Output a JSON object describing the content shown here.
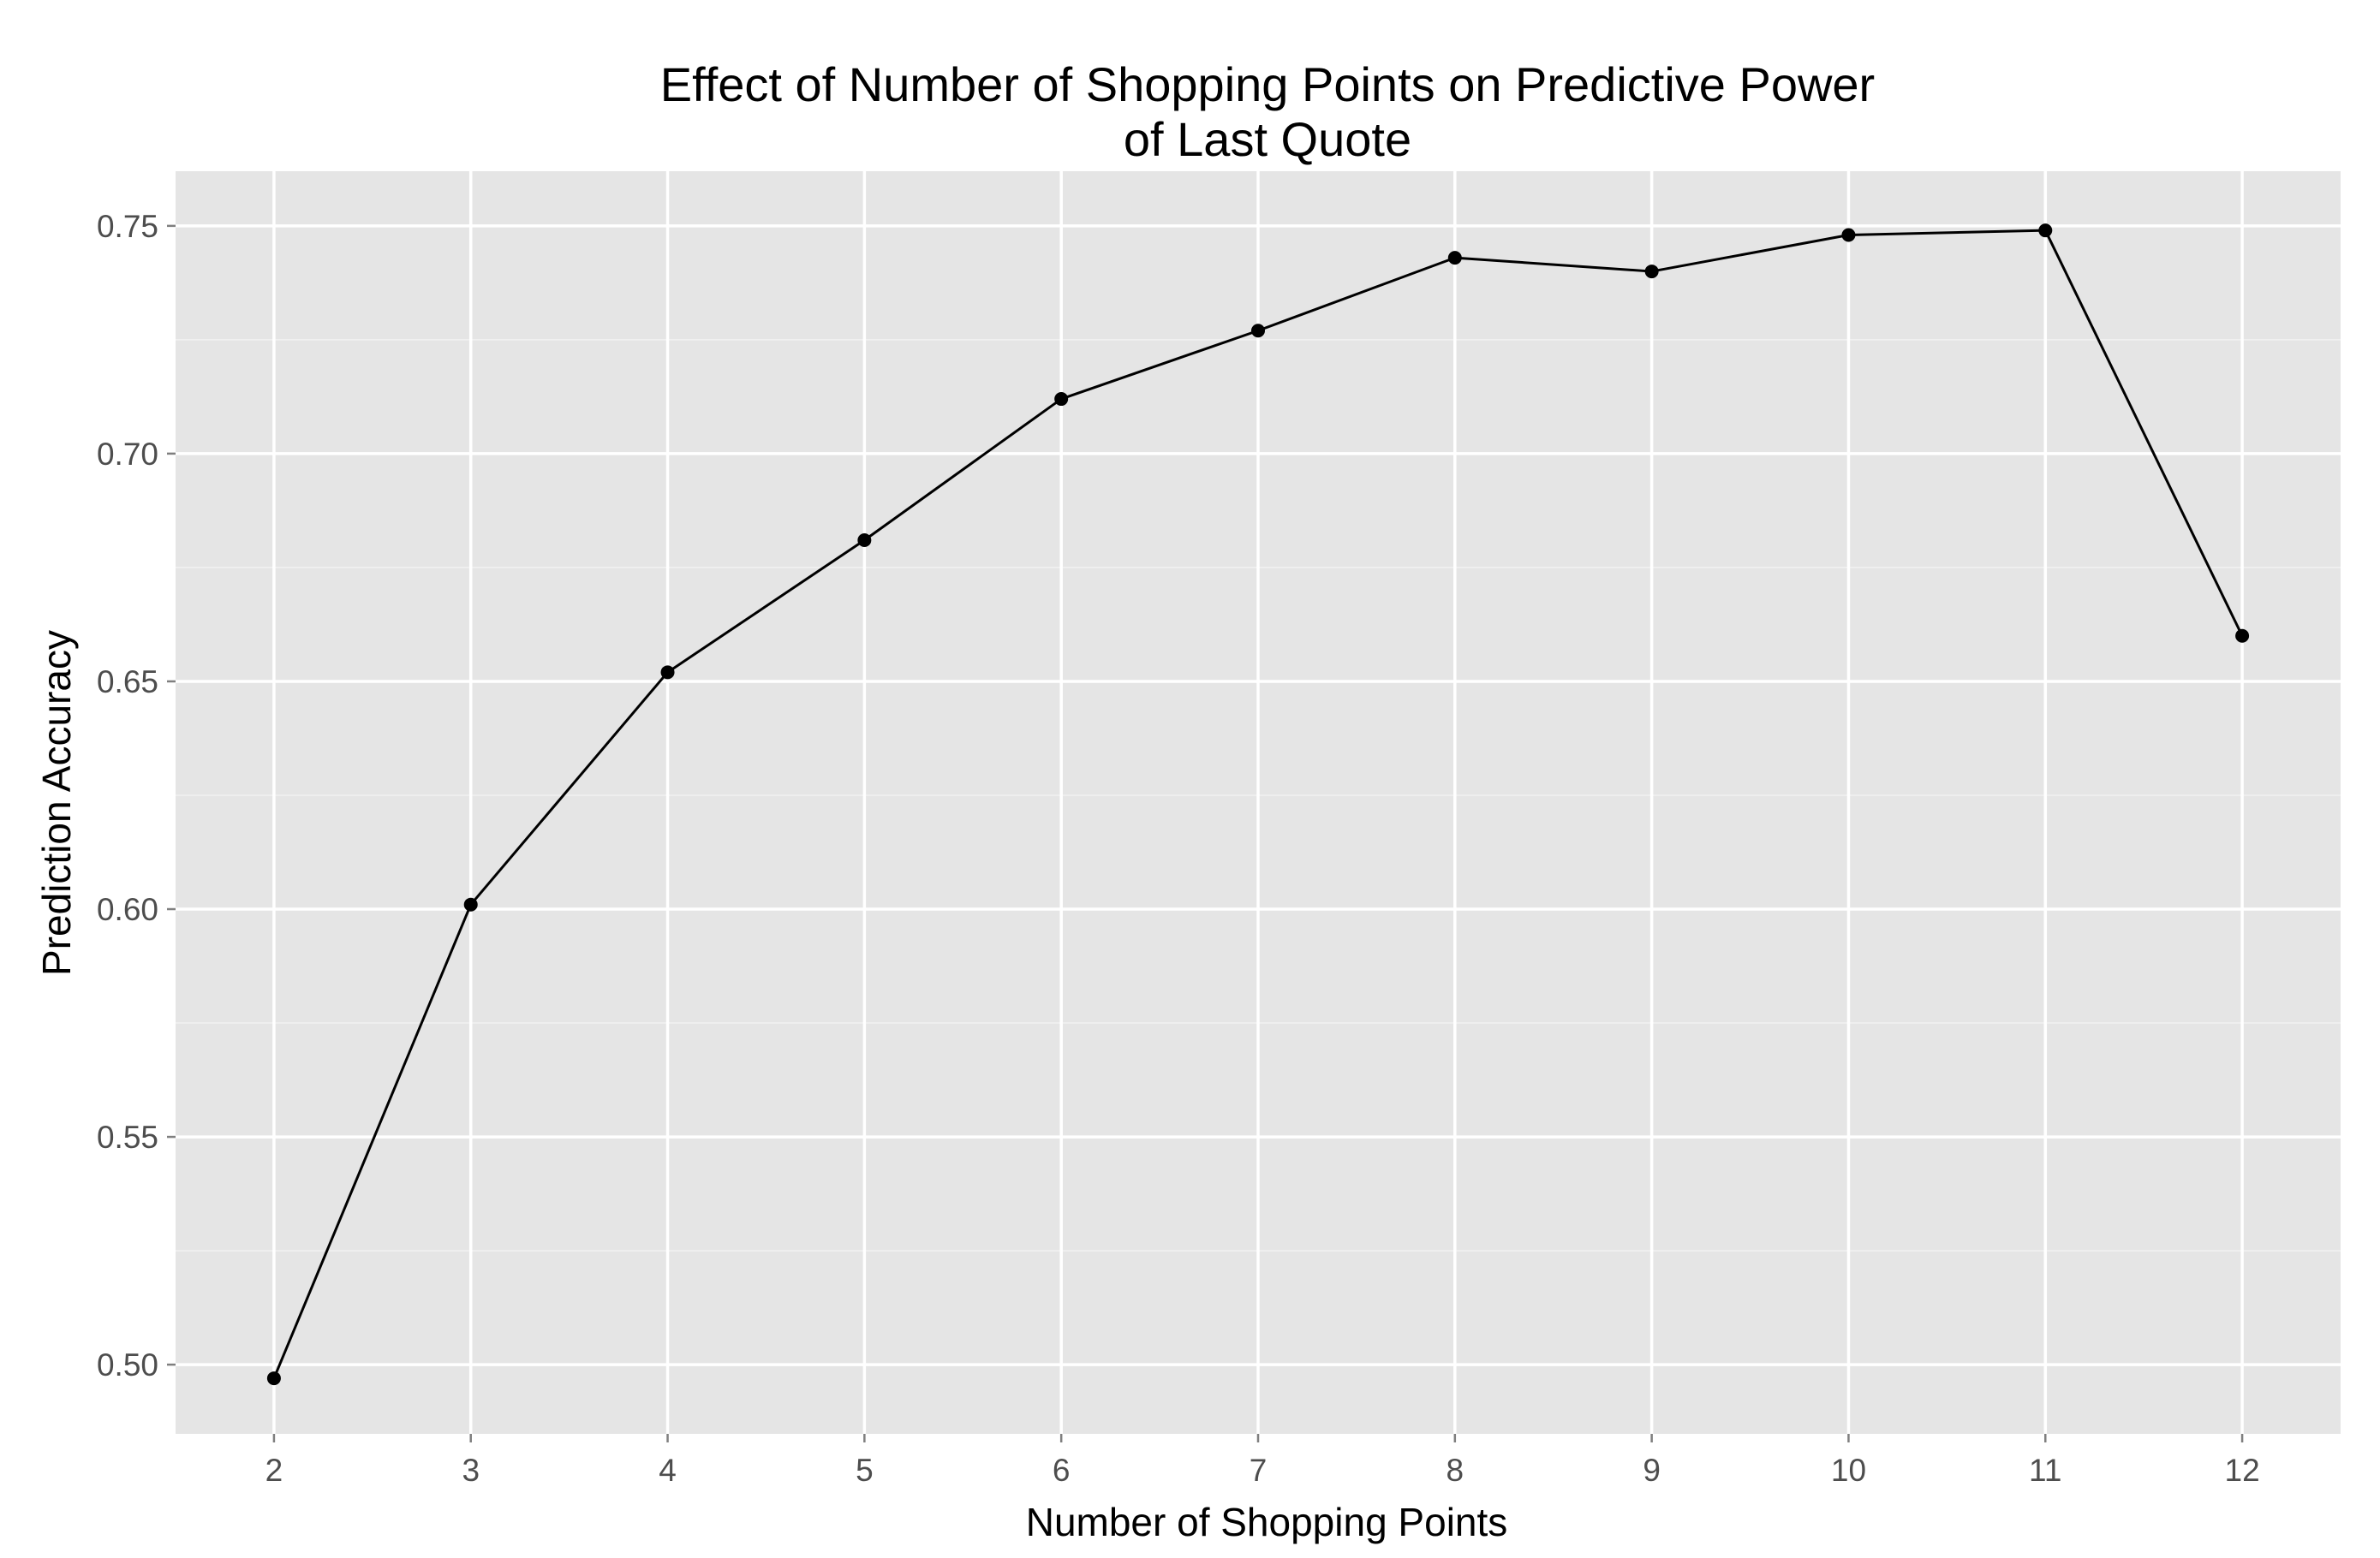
{
  "chart_data": {
    "type": "line",
    "title": "Effect of Number of Shopping Points on Predictive Power",
    "title_line2": "of Last Quote",
    "xlabel": "Number of Shopping Points",
    "ylabel": "Prediction Accuracy",
    "x": [
      2,
      3,
      4,
      5,
      6,
      7,
      8,
      9,
      10,
      11,
      12
    ],
    "x_tick_labels": [
      "2",
      "3",
      "4",
      "5",
      "6",
      "7",
      "8",
      "9",
      "10",
      "11",
      "12"
    ],
    "y_ticks": [
      0.5,
      0.55,
      0.6,
      0.65,
      0.7,
      0.75
    ],
    "y_tick_labels": [
      "0.50",
      "0.55",
      "0.60",
      "0.65",
      "0.70",
      "0.75"
    ],
    "xlim": [
      1.5,
      12.5
    ],
    "ylim": [
      0.4848,
      0.762
    ],
    "series": [
      {
        "values": [
          0.497,
          0.601,
          0.652,
          0.681,
          0.712,
          0.727,
          0.743,
          0.74,
          0.748,
          0.749,
          0.66
        ]
      }
    ],
    "grid": true,
    "legend": "none",
    "colors": {
      "panel_background": "#e5e5e5",
      "grid_major": "#ffffff",
      "grid_minor": "#f2f2f2",
      "line": "#000000",
      "point": "#000000",
      "tick_label": "#4d4d4d"
    }
  }
}
